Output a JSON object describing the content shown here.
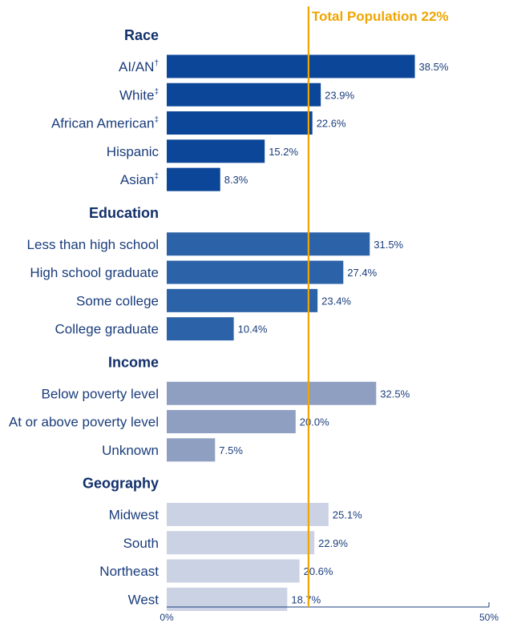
{
  "chart_data": {
    "type": "bar",
    "orientation": "horizontal",
    "xlim": [
      0,
      50
    ],
    "x_ticks": [
      "0%",
      "50%"
    ],
    "value_suffix": "%",
    "reference_line": {
      "value": 22,
      "label": "Total Population 22%",
      "color": "#f0a500"
    },
    "groups": [
      {
        "name": "Race",
        "color": "#0b4699",
        "items": [
          {
            "label": "AI/AN",
            "sup": "†",
            "value": 38.5
          },
          {
            "label": "White",
            "sup": "‡",
            "value": 23.9
          },
          {
            "label": "African American",
            "sup": "‡",
            "value": 22.6
          },
          {
            "label": "Hispanic",
            "sup": "",
            "value": 15.2
          },
          {
            "label": "Asian",
            "sup": "‡",
            "value": 8.3
          }
        ]
      },
      {
        "name": "Education",
        "color": "#2c62a8",
        "items": [
          {
            "label": "Less than high school",
            "sup": "",
            "value": 31.5
          },
          {
            "label": "High school graduate",
            "sup": "",
            "value": 27.4
          },
          {
            "label": "Some college",
            "sup": "",
            "value": 23.4
          },
          {
            "label": "College graduate",
            "sup": "",
            "value": 10.4
          }
        ]
      },
      {
        "name": "Income",
        "color": "#8e9fc1",
        "items": [
          {
            "label": "Below poverty level",
            "sup": "",
            "value": 32.5
          },
          {
            "label": "At or above poverty level",
            "sup": "",
            "value": 20.0
          },
          {
            "label": "Unknown",
            "sup": "",
            "value": 7.5
          }
        ]
      },
      {
        "name": "Geography",
        "color": "#cbd2e4",
        "items": [
          {
            "label": "Midwest",
            "sup": "",
            "value": 25.1
          },
          {
            "label": "South",
            "sup": "",
            "value": 22.9
          },
          {
            "label": "Northeast",
            "sup": "",
            "value": 20.6
          },
          {
            "label": "West",
            "sup": "",
            "value": 18.7
          }
        ]
      }
    ]
  }
}
